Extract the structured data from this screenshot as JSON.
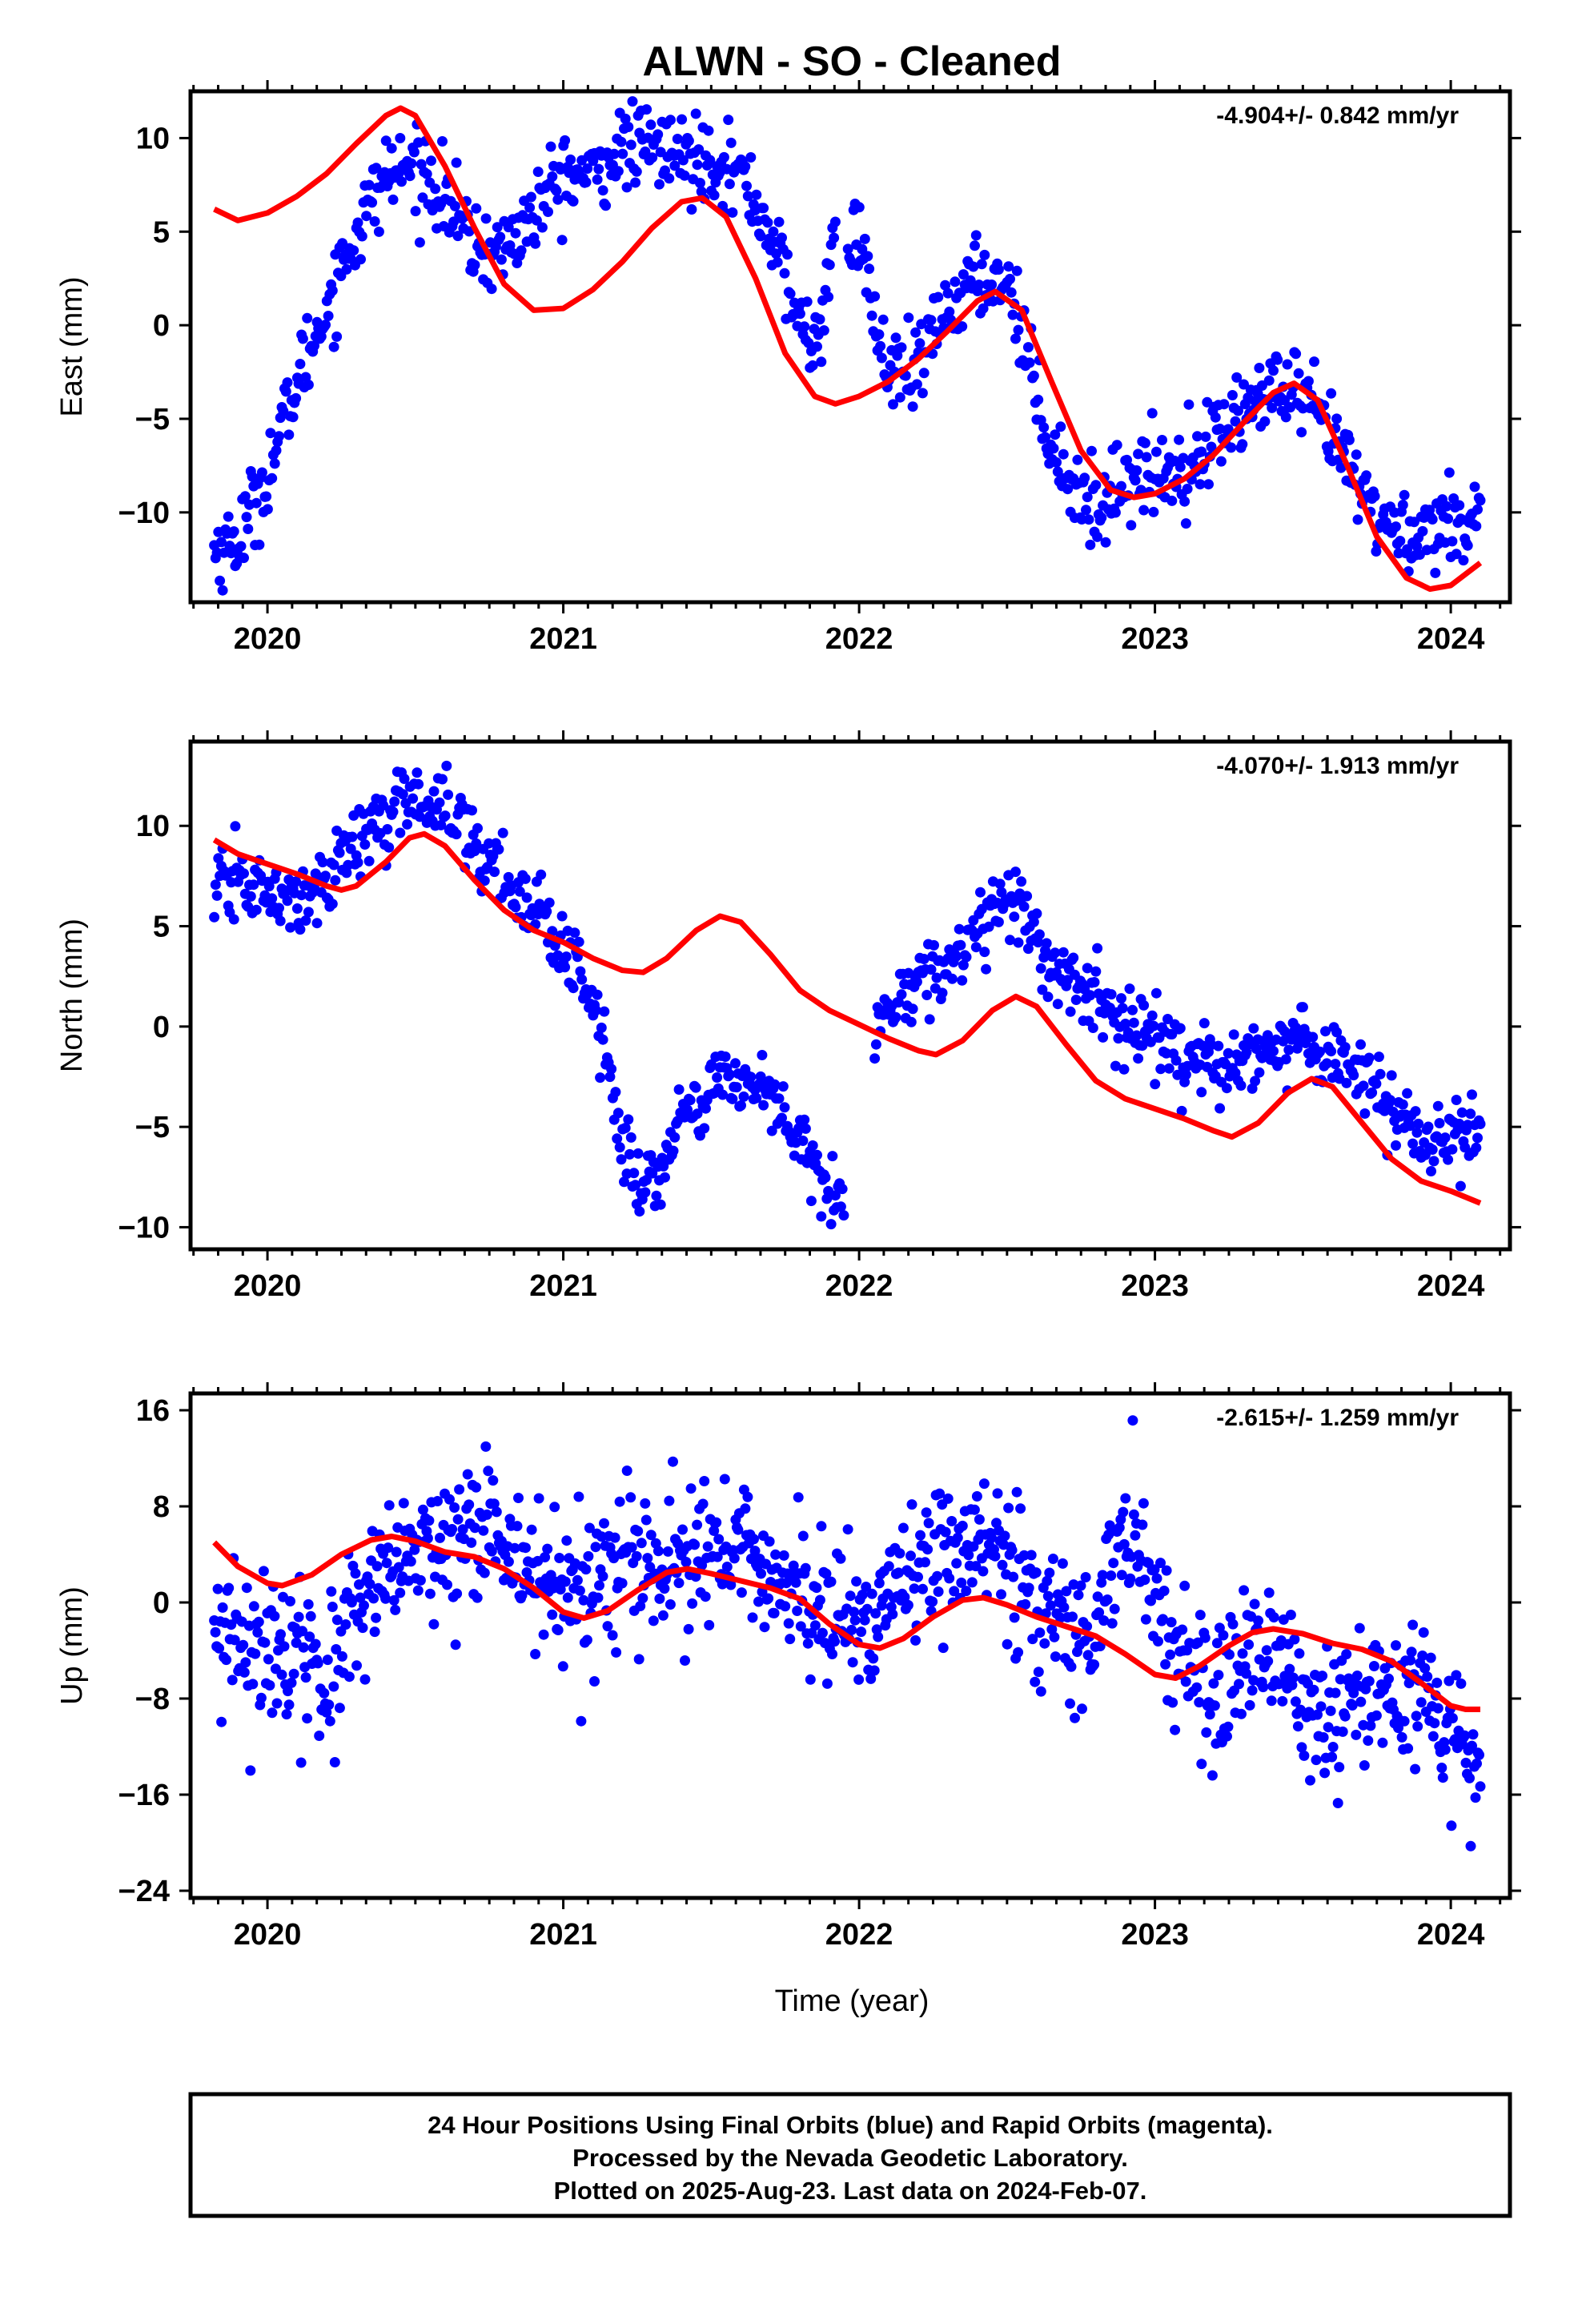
{
  "title": "ALWN  - SO - Cleaned",
  "x_axis_label": "Time (year)",
  "footer": {
    "line1": "24 Hour Positions Using Final Orbits (blue) and Rapid Orbits (magenta).",
    "line2": "Processed by the Nevada Geodetic Laboratory.",
    "line3": "Plotted on 2025-Aug-23. Last data on 2024-Feb-07."
  },
  "colors": {
    "points": "#0000ff",
    "fit": "#ff0000",
    "axes": "#000000"
  },
  "chart_data": [
    {
      "type": "scatter",
      "ylabel": "East (mm)",
      "rate": "-4.904+/- 0.842 mm/yr",
      "xlim": [
        2019.74,
        2024.2
      ],
      "ylim": [
        -14.8,
        12.5
      ],
      "x_ticks": [
        2020,
        2021,
        2022,
        2023,
        2024
      ],
      "y_ticks": [
        -10,
        -5,
        0,
        5,
        10
      ],
      "grid": false,
      "point_model": {
        "x_start": 2019.82,
        "x_end": 2024.1,
        "count": 900,
        "gaps": [
          [
            2021.92,
            2021.96
          ]
        ],
        "trend": [
          [
            2019.82,
            -12
          ],
          [
            2019.9,
            -11.5
          ],
          [
            2020.0,
            -8
          ],
          [
            2020.1,
            -3
          ],
          [
            2020.2,
            1
          ],
          [
            2020.3,
            5
          ],
          [
            2020.4,
            8
          ],
          [
            2020.5,
            8.5
          ],
          [
            2020.6,
            7
          ],
          [
            2020.7,
            4
          ],
          [
            2020.8,
            4
          ],
          [
            2020.9,
            6
          ],
          [
            2021.0,
            8
          ],
          [
            2021.1,
            8
          ],
          [
            2021.2,
            9.5
          ],
          [
            2021.3,
            9.5
          ],
          [
            2021.4,
            9
          ],
          [
            2021.5,
            9
          ],
          [
            2021.6,
            8
          ],
          [
            2021.7,
            5
          ],
          [
            2021.8,
            0
          ],
          [
            2021.85,
            -1
          ],
          [
            2021.92,
            4
          ],
          [
            2022.0,
            5
          ],
          [
            2022.08,
            -2
          ],
          [
            2022.18,
            -3
          ],
          [
            2022.3,
            1
          ],
          [
            2022.4,
            2.5
          ],
          [
            2022.5,
            2.5
          ],
          [
            2022.55,
            0
          ],
          [
            2022.6,
            -4
          ],
          [
            2022.7,
            -8
          ],
          [
            2022.8,
            -10
          ],
          [
            2022.9,
            -8
          ],
          [
            2023.0,
            -8
          ],
          [
            2023.1,
            -7.5
          ],
          [
            2023.2,
            -6
          ],
          [
            2023.3,
            -4.5
          ],
          [
            2023.4,
            -3.5
          ],
          [
            2023.5,
            -4
          ],
          [
            2023.6,
            -6
          ],
          [
            2023.7,
            -9
          ],
          [
            2023.8,
            -11
          ],
          [
            2023.9,
            -11
          ],
          [
            2024.0,
            -10.5
          ],
          [
            2024.1,
            -10
          ]
        ],
        "noise_sd": 1.1
      },
      "fit_line": [
        [
          2019.82,
          6.2
        ],
        [
          2019.9,
          5.6
        ],
        [
          2020.0,
          6.0
        ],
        [
          2020.1,
          6.9
        ],
        [
          2020.2,
          8.1
        ],
        [
          2020.3,
          9.7
        ],
        [
          2020.4,
          11.2
        ],
        [
          2020.45,
          11.6
        ],
        [
          2020.5,
          11.2
        ],
        [
          2020.6,
          8.5
        ],
        [
          2020.7,
          5.2
        ],
        [
          2020.8,
          2.2
        ],
        [
          2020.9,
          0.8
        ],
        [
          2021.0,
          0.9
        ],
        [
          2021.1,
          1.9
        ],
        [
          2021.2,
          3.4
        ],
        [
          2021.3,
          5.2
        ],
        [
          2021.4,
          6.6
        ],
        [
          2021.47,
          6.8
        ],
        [
          2021.55,
          5.8
        ],
        [
          2021.65,
          2.5
        ],
        [
          2021.75,
          -1.5
        ],
        [
          2021.85,
          -3.8
        ],
        [
          2021.92,
          -4.2
        ],
        [
          2022.0,
          -3.8
        ],
        [
          2022.1,
          -3.0
        ],
        [
          2022.2,
          -1.8
        ],
        [
          2022.3,
          -0.3
        ],
        [
          2022.4,
          1.3
        ],
        [
          2022.46,
          1.8
        ],
        [
          2022.55,
          0.8
        ],
        [
          2022.65,
          -3.0
        ],
        [
          2022.75,
          -6.7
        ],
        [
          2022.85,
          -8.8
        ],
        [
          2022.93,
          -9.2
        ],
        [
          2023.0,
          -9.0
        ],
        [
          2023.1,
          -8.2
        ],
        [
          2023.2,
          -6.9
        ],
        [
          2023.3,
          -5.2
        ],
        [
          2023.4,
          -3.6
        ],
        [
          2023.47,
          -3.1
        ],
        [
          2023.55,
          -4.0
        ],
        [
          2023.65,
          -7.5
        ],
        [
          2023.75,
          -11.3
        ],
        [
          2023.85,
          -13.5
        ],
        [
          2023.93,
          -14.1
        ],
        [
          2024.0,
          -13.9
        ],
        [
          2024.1,
          -12.7
        ]
      ]
    },
    {
      "type": "scatter",
      "ylabel": "North (mm)",
      "rate": "-4.070+/- 1.913 mm/yr",
      "xlim": [
        2019.74,
        2024.2
      ],
      "ylim": [
        -11.1,
        14.2
      ],
      "x_ticks": [
        2020,
        2021,
        2022,
        2023,
        2024
      ],
      "y_ticks": [
        -10,
        -5,
        0,
        5,
        10
      ],
      "grid": false,
      "point_model": {
        "x_start": 2019.82,
        "x_end": 2024.1,
        "count": 900,
        "gaps": [
          [
            2021.95,
            2022.05
          ]
        ],
        "trend": [
          [
            2019.82,
            6.5
          ],
          [
            2019.9,
            7.5
          ],
          [
            2020.0,
            6.5
          ],
          [
            2020.1,
            6
          ],
          [
            2020.2,
            7.5
          ],
          [
            2020.3,
            9
          ],
          [
            2020.4,
            10.5
          ],
          [
            2020.5,
            11.5
          ],
          [
            2020.6,
            11
          ],
          [
            2020.7,
            9
          ],
          [
            2020.8,
            7.5
          ],
          [
            2020.9,
            6
          ],
          [
            2021.0,
            4
          ],
          [
            2021.05,
            3
          ],
          [
            2021.1,
            1
          ],
          [
            2021.15,
            -2
          ],
          [
            2021.2,
            -6
          ],
          [
            2021.25,
            -8
          ],
          [
            2021.3,
            -7.5
          ],
          [
            2021.4,
            -5
          ],
          [
            2021.5,
            -3
          ],
          [
            2021.6,
            -2.5
          ],
          [
            2021.7,
            -3.5
          ],
          [
            2021.8,
            -6
          ],
          [
            2021.9,
            -8
          ],
          [
            2021.95,
            -8.5
          ],
          [
            2022.05,
            -1
          ],
          [
            2022.1,
            1
          ],
          [
            2022.2,
            2.5
          ],
          [
            2022.3,
            3
          ],
          [
            2022.4,
            5
          ],
          [
            2022.5,
            6.5
          ],
          [
            2022.55,
            6
          ],
          [
            2022.6,
            4
          ],
          [
            2022.7,
            2.5
          ],
          [
            2022.8,
            1
          ],
          [
            2022.9,
            0
          ],
          [
            2023.0,
            -0.5
          ],
          [
            2023.1,
            -2
          ],
          [
            2023.2,
            -2
          ],
          [
            2023.3,
            -1.5
          ],
          [
            2023.4,
            -1
          ],
          [
            2023.5,
            -0.5
          ],
          [
            2023.6,
            -1.5
          ],
          [
            2023.7,
            -2.5
          ],
          [
            2023.8,
            -4
          ],
          [
            2023.9,
            -6
          ],
          [
            2024.0,
            -5.5
          ],
          [
            2024.1,
            -5.5
          ]
        ],
        "noise_sd": 0.9
      },
      "fit_line": [
        [
          2019.82,
          9.3
        ],
        [
          2019.9,
          8.6
        ],
        [
          2020.0,
          8.1
        ],
        [
          2020.1,
          7.6
        ],
        [
          2020.2,
          7.0
        ],
        [
          2020.25,
          6.8
        ],
        [
          2020.3,
          7.0
        ],
        [
          2020.4,
          8.2
        ],
        [
          2020.48,
          9.4
        ],
        [
          2020.53,
          9.6
        ],
        [
          2020.6,
          9.0
        ],
        [
          2020.7,
          7.3
        ],
        [
          2020.8,
          5.8
        ],
        [
          2020.9,
          4.8
        ],
        [
          2021.0,
          4.2
        ],
        [
          2021.1,
          3.4
        ],
        [
          2021.2,
          2.8
        ],
        [
          2021.27,
          2.7
        ],
        [
          2021.35,
          3.4
        ],
        [
          2021.45,
          4.8
        ],
        [
          2021.53,
          5.5
        ],
        [
          2021.6,
          5.2
        ],
        [
          2021.7,
          3.6
        ],
        [
          2021.8,
          1.8
        ],
        [
          2021.9,
          0.8
        ],
        [
          2022.0,
          0.1
        ],
        [
          2022.1,
          -0.6
        ],
        [
          2022.2,
          -1.2
        ],
        [
          2022.26,
          -1.4
        ],
        [
          2022.35,
          -0.7
        ],
        [
          2022.45,
          0.8
        ],
        [
          2022.53,
          1.5
        ],
        [
          2022.6,
          1.0
        ],
        [
          2022.7,
          -0.9
        ],
        [
          2022.8,
          -2.7
        ],
        [
          2022.9,
          -3.6
        ],
        [
          2023.0,
          -4.1
        ],
        [
          2023.1,
          -4.6
        ],
        [
          2023.2,
          -5.2
        ],
        [
          2023.26,
          -5.5
        ],
        [
          2023.35,
          -4.8
        ],
        [
          2023.45,
          -3.3
        ],
        [
          2023.53,
          -2.6
        ],
        [
          2023.6,
          -3.0
        ],
        [
          2023.7,
          -4.8
        ],
        [
          2023.8,
          -6.6
        ],
        [
          2023.9,
          -7.7
        ],
        [
          2024.0,
          -8.2
        ],
        [
          2024.1,
          -8.8
        ]
      ]
    },
    {
      "type": "scatter",
      "ylabel": "Up (mm)",
      "rate": "-2.615+/- 1.259 mm/yr",
      "xlim": [
        2019.74,
        2024.2
      ],
      "ylim": [
        -24.6,
        17.4
      ],
      "x_ticks": [
        2020,
        2021,
        2022,
        2023,
        2024
      ],
      "y_ticks": [
        -24,
        -16,
        -8,
        0,
        8,
        16
      ],
      "grid": false,
      "point_model": {
        "x_start": 2019.82,
        "x_end": 2024.1,
        "count": 1050,
        "gaps": [],
        "trend": [
          [
            2019.82,
            -4
          ],
          [
            2019.9,
            -3
          ],
          [
            2020.0,
            -3
          ],
          [
            2020.1,
            -5
          ],
          [
            2020.2,
            -6
          ],
          [
            2020.3,
            -2
          ],
          [
            2020.4,
            2
          ],
          [
            2020.5,
            4
          ],
          [
            2020.6,
            4.5
          ],
          [
            2020.7,
            5.5
          ],
          [
            2020.8,
            5
          ],
          [
            2020.9,
            3
          ],
          [
            2021.0,
            0
          ],
          [
            2021.1,
            1
          ],
          [
            2021.2,
            3
          ],
          [
            2021.3,
            2
          ],
          [
            2021.4,
            3
          ],
          [
            2021.5,
            4
          ],
          [
            2021.6,
            4
          ],
          [
            2021.7,
            3
          ],
          [
            2021.8,
            1
          ],
          [
            2021.9,
            -1
          ],
          [
            2022.0,
            -3
          ],
          [
            2022.1,
            1
          ],
          [
            2022.2,
            3
          ],
          [
            2022.3,
            4
          ],
          [
            2022.4,
            5
          ],
          [
            2022.5,
            3
          ],
          [
            2022.6,
            0
          ],
          [
            2022.7,
            -2
          ],
          [
            2022.8,
            -3
          ],
          [
            2022.88,
            6
          ],
          [
            2022.93,
            7
          ],
          [
            2023.0,
            0
          ],
          [
            2023.1,
            -5
          ],
          [
            2023.2,
            -6
          ],
          [
            2023.3,
            -5
          ],
          [
            2023.4,
            -4
          ],
          [
            2023.5,
            -9
          ],
          [
            2023.6,
            -10
          ],
          [
            2023.7,
            -8
          ],
          [
            2023.8,
            -7
          ],
          [
            2023.9,
            -9
          ],
          [
            2024.0,
            -12
          ],
          [
            2024.1,
            -15
          ]
        ],
        "noise_sd": 3.1
      },
      "fit_line": [
        [
          2019.82,
          5.0
        ],
        [
          2019.9,
          3.0
        ],
        [
          2020.0,
          1.6
        ],
        [
          2020.05,
          1.4
        ],
        [
          2020.15,
          2.3
        ],
        [
          2020.25,
          4.0
        ],
        [
          2020.35,
          5.2
        ],
        [
          2020.42,
          5.5
        ],
        [
          2020.5,
          5.1
        ],
        [
          2020.6,
          4.2
        ],
        [
          2020.7,
          3.8
        ],
        [
          2020.8,
          2.8
        ],
        [
          2020.9,
          1.2
        ],
        [
          2021.0,
          -0.8
        ],
        [
          2021.07,
          -1.3
        ],
        [
          2021.15,
          -0.7
        ],
        [
          2021.25,
          1.0
        ],
        [
          2021.35,
          2.5
        ],
        [
          2021.42,
          2.8
        ],
        [
          2021.5,
          2.4
        ],
        [
          2021.6,
          1.8
        ],
        [
          2021.7,
          1.2
        ],
        [
          2021.8,
          0.3
        ],
        [
          2021.9,
          -1.8
        ],
        [
          2022.0,
          -3.5
        ],
        [
          2022.07,
          -3.8
        ],
        [
          2022.15,
          -3.0
        ],
        [
          2022.25,
          -1.2
        ],
        [
          2022.35,
          0.2
        ],
        [
          2022.42,
          0.4
        ],
        [
          2022.5,
          -0.2
        ],
        [
          2022.6,
          -1.2
        ],
        [
          2022.7,
          -2.0
        ],
        [
          2022.8,
          -2.8
        ],
        [
          2022.9,
          -4.3
        ],
        [
          2023.0,
          -6.0
        ],
        [
          2023.07,
          -6.3
        ],
        [
          2023.15,
          -5.3
        ],
        [
          2023.25,
          -3.6
        ],
        [
          2023.33,
          -2.5
        ],
        [
          2023.4,
          -2.2
        ],
        [
          2023.5,
          -2.6
        ],
        [
          2023.6,
          -3.4
        ],
        [
          2023.7,
          -3.9
        ],
        [
          2023.8,
          -4.9
        ],
        [
          2023.9,
          -6.7
        ],
        [
          2024.0,
          -8.6
        ],
        [
          2024.05,
          -8.9
        ],
        [
          2024.1,
          -8.9
        ]
      ]
    }
  ]
}
